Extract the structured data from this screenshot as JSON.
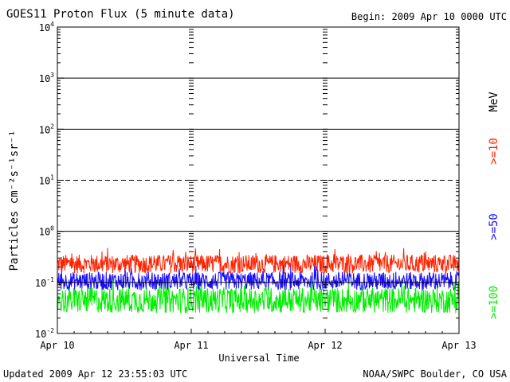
{
  "chart_data": {
    "type": "line",
    "title": "GOES11 Proton Flux (5 minute data)",
    "begin_label": "Begin: 2009 Apr 10 0000 UTC",
    "xlabel": "Universal Time",
    "ylabel": "Particles cm⁻²s⁻¹sr⁻¹",
    "y_scale": "log",
    "ylim": [
      0.01,
      10000
    ],
    "xlim": [
      "2009-04-10",
      "2009-04-13"
    ],
    "x_ticks": [
      "Apr 10",
      "Apr 11",
      "Apr 12",
      "Apr 13"
    ],
    "y_ticks": [
      {
        "base": "10",
        "exp": "4"
      },
      {
        "base": "10",
        "exp": "3"
      },
      {
        "base": "10",
        "exp": "2"
      },
      {
        "base": "10",
        "exp": "1"
      },
      {
        "base": "10",
        "exp": "0"
      },
      {
        "base": "10",
        "exp": "-1"
      },
      {
        "base": "10",
        "exp": "-2"
      }
    ],
    "reference_lines": [
      {
        "value": 1000,
        "style": "solid"
      },
      {
        "value": 100,
        "style": "solid"
      },
      {
        "value": 10,
        "style": "dashed"
      },
      {
        "value": 1,
        "style": "solid"
      },
      {
        "value": 0.1,
        "style": "solid"
      }
    ],
    "series": [
      {
        "name": ">=10",
        "color": "#ff2200",
        "typical_range": [
          0.15,
          0.35
        ]
      },
      {
        "name": ">=50",
        "color": "#1a0dff",
        "typical_range": [
          0.07,
          0.16
        ]
      },
      {
        "name": ">=100",
        "color": "#00ee00",
        "typical_range": [
          0.025,
          0.08
        ]
      }
    ],
    "legend_unit": "MeV",
    "legend_position": "right, vertical"
  },
  "footer": {
    "updated": "Updated 2009 Apr 12 23:55:03 UTC",
    "source": "NOAA/SWPC Boulder, CO USA"
  }
}
